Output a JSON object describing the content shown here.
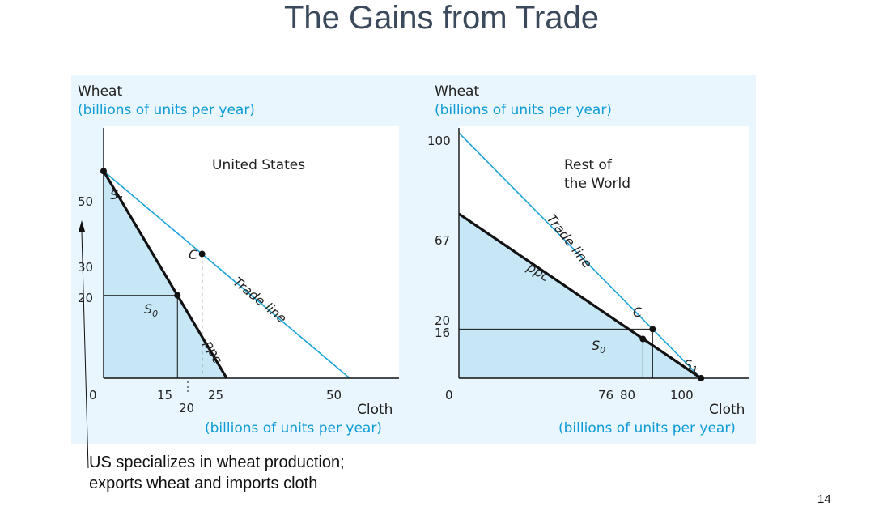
{
  "slide": {
    "title": "The Gains from Trade",
    "caption_line1": "US specializes in wheat production;",
    "caption_line2": "exports wheat  and imports cloth",
    "page_number": "14",
    "panel_color": "#e9f6fd",
    "area_color": "#c7e7f7",
    "trade_line_color": "#1aa3d9"
  },
  "chart_data": [
    {
      "type": "line",
      "panel_label": "United States",
      "ylabel": "Wheat",
      "ylabel_unit": "(billions of units per year)",
      "xlabel": "Cloth",
      "xlabel_unit": "(billions of units per year)",
      "xlim": [
        0,
        60
      ],
      "ylim": [
        0,
        61
      ],
      "origin_label": "0",
      "x_ticks": [
        {
          "value": 15,
          "label": "15"
        },
        {
          "value": 20,
          "label": "20"
        },
        {
          "value": 25,
          "label": "25"
        },
        {
          "value": 50,
          "label": "50"
        }
      ],
      "y_ticks": [
        {
          "value": 20,
          "label": "20"
        },
        {
          "value": 30,
          "label": "30"
        },
        {
          "value": 50,
          "label": "50"
        }
      ],
      "series": [
        {
          "name": "ppc",
          "x": [
            0,
            25
          ],
          "y": [
            50,
            0
          ]
        },
        {
          "name": "Trade line",
          "x": [
            0,
            50
          ],
          "y": [
            50,
            0
          ]
        }
      ],
      "points": [
        {
          "label": "S",
          "subscript": "1",
          "x": 0,
          "y": 50
        },
        {
          "label": "S",
          "subscript": "0",
          "x": 15,
          "y": 20
        },
        {
          "label": "C",
          "subscript": "",
          "x": 20,
          "y": 30
        }
      ]
    },
    {
      "type": "line",
      "panel_label_line1": "Rest of",
      "panel_label_line2": "the World",
      "ylabel": "Wheat",
      "ylabel_unit": "(billions of units per year)",
      "xlabel": "Cloth",
      "xlabel_unit": "(billions of units per year)",
      "xlim": [
        0,
        120
      ],
      "ylim": [
        0,
        103
      ],
      "origin_label": "0",
      "x_ticks": [
        {
          "value": 76,
          "label": "76"
        },
        {
          "value": 80,
          "label": "80"
        },
        {
          "value": 100,
          "label": "100"
        }
      ],
      "y_ticks": [
        {
          "value": 16,
          "label": "16"
        },
        {
          "value": 20,
          "label": "20"
        },
        {
          "value": 67,
          "label": "67"
        },
        {
          "value": 100,
          "label": "100"
        }
      ],
      "series": [
        {
          "name": "ppc",
          "x": [
            0,
            100
          ],
          "y": [
            67,
            0
          ]
        },
        {
          "name": "Trade line",
          "x": [
            0,
            100
          ],
          "y": [
            100,
            0
          ]
        }
      ],
      "points": [
        {
          "label": "S",
          "subscript": "1",
          "x": 100,
          "y": 0
        },
        {
          "label": "S",
          "subscript": "0",
          "x": 76,
          "y": 16
        },
        {
          "label": "C",
          "subscript": "",
          "x": 80,
          "y": 20
        }
      ]
    }
  ]
}
